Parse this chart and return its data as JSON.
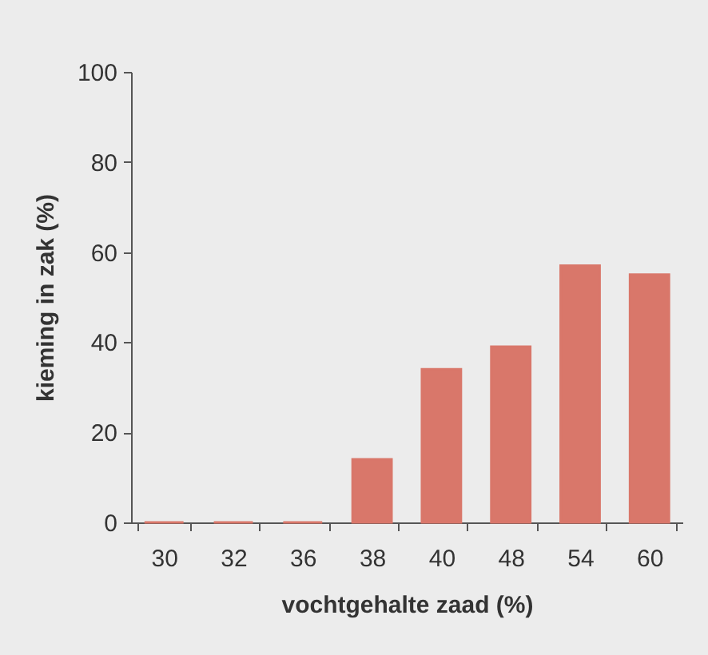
{
  "chart_data": {
    "type": "bar",
    "xlabel": "vochtgehalte zaad (%)",
    "ylabel": "kieming in zak (%)",
    "categories": [
      "30",
      "32",
      "36",
      "38",
      "40",
      "48",
      "54",
      "60"
    ],
    "values": [
      0,
      0,
      0,
      14,
      34,
      39,
      57,
      55
    ],
    "color": "#d9776a",
    "ylim": [
      0,
      100
    ],
    "yticks": [
      0,
      20,
      40,
      60,
      80,
      100
    ],
    "grid": false
  }
}
